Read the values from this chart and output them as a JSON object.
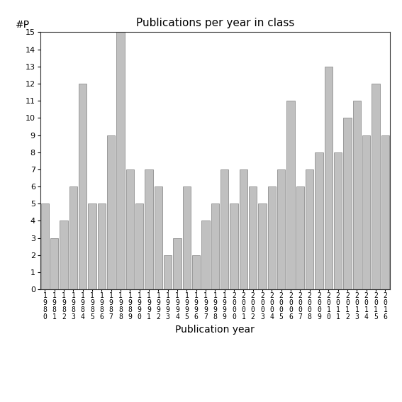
{
  "years": [
    "1980",
    "1981",
    "1982",
    "1983",
    "1984",
    "1985",
    "1986",
    "1987",
    "1988",
    "1989",
    "1990",
    "1991",
    "1992",
    "1993",
    "1994",
    "1995",
    "1996",
    "1997",
    "1998",
    "1999",
    "2000",
    "2001",
    "2002",
    "2003",
    "2004",
    "2005",
    "2006",
    "2007",
    "2008",
    "2009",
    "2010",
    "2011",
    "2012",
    "2013",
    "2014",
    "2015",
    "2016"
  ],
  "values": [
    5,
    3,
    4,
    6,
    12,
    5,
    5,
    9,
    15,
    7,
    5,
    7,
    6,
    2,
    3,
    6,
    2,
    4,
    5,
    7,
    5,
    7,
    6,
    5,
    6,
    7,
    11,
    6,
    7,
    8,
    13,
    8,
    10,
    11,
    9,
    12,
    9
  ],
  "bar_color": "#c0c0c0",
  "bar_edgecolor": "#808080",
  "title": "Publications per year in class",
  "xlabel": "Publication year",
  "ylabel_text": "#P",
  "ylim": [
    0,
    15
  ],
  "yticks": [
    0,
    1,
    2,
    3,
    4,
    5,
    6,
    7,
    8,
    9,
    10,
    11,
    12,
    13,
    14,
    15
  ],
  "title_fontsize": 11,
  "xlabel_fontsize": 10,
  "ylabel_fontsize": 10,
  "tick_fontsize": 8,
  "xtick_fontsize": 7,
  "bg_color": "#ffffff"
}
